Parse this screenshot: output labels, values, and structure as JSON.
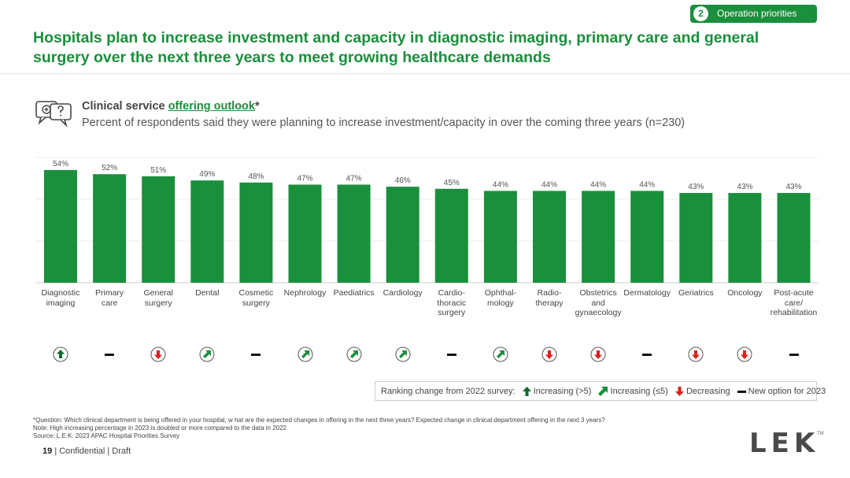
{
  "badge": {
    "number": "2",
    "label": "Operation priorities"
  },
  "title": "Hospitals plan to increase investment and capacity in diagnostic imaging, primary care and general surgery over the next three years to meet growing healthcare demands",
  "subtitle": {
    "prefix": "Clinical service ",
    "link": "offering outlook",
    "suffix": "*",
    "description": "Percent of respondents said they were planning to increase investment/capacity in over the coming three years (n=230)"
  },
  "chart_data": {
    "type": "bar",
    "categories": [
      "Diagnostic imaging",
      "Primary care",
      "General surgery",
      "Dental",
      "Cosmetic surgery",
      "Nephrology",
      "Paediatrics",
      "Cardiology",
      "Cardio-thoracic surgery",
      "Ophthal-mology",
      "Radio-therapy",
      "Obstetrics and gynaecology",
      "Dermatology",
      "Geriatrics",
      "Oncology",
      "Post-acute care/ rehabilitation"
    ],
    "category_lines": [
      [
        "Diagnostic",
        "imaging"
      ],
      [
        "Primary",
        "care"
      ],
      [
        "General",
        "surgery"
      ],
      [
        "Dental"
      ],
      [
        "Cosmetic",
        "surgery"
      ],
      [
        "Nephrology"
      ],
      [
        "Paediatrics"
      ],
      [
        "Cardiology"
      ],
      [
        "Cardio-",
        "thoracic",
        "surgery"
      ],
      [
        "Ophthal-",
        "mology"
      ],
      [
        "Radio-",
        "therapy"
      ],
      [
        "Obstetrics",
        "and",
        "gynaecology"
      ],
      [
        "Dermatology"
      ],
      [
        "Geriatrics"
      ],
      [
        "Oncology"
      ],
      [
        "Post-acute",
        "care/",
        "rehabilitation"
      ]
    ],
    "values": [
      54,
      52,
      51,
      49,
      48,
      47,
      47,
      46,
      45,
      44,
      44,
      44,
      44,
      43,
      43,
      43
    ],
    "value_labels": [
      "54%",
      "52%",
      "51%",
      "49%",
      "48%",
      "47%",
      "47%",
      "46%",
      "45%",
      "44%",
      "44%",
      "44%",
      "44%",
      "43%",
      "43%",
      "43%"
    ],
    "ranking_change": [
      "increasing_gt5",
      "new",
      "decreasing",
      "increasing_le5",
      "new",
      "increasing_le5",
      "increasing_le5",
      "increasing_le5",
      "new",
      "increasing_le5",
      "decreasing",
      "decreasing",
      "new",
      "decreasing",
      "decreasing",
      "new"
    ],
    "ylim": [
      0,
      60
    ],
    "grid": true,
    "bar_color": "#1a8f3c"
  },
  "legend": {
    "prefix": "Ranking change from 2022 survey:",
    "increasing_gt5": "Increasing (>5)",
    "increasing_le5": "Increasing (≤5)",
    "decreasing": "Decreasing",
    "new": "New option for 2023"
  },
  "colors": {
    "accent": "#1a8f3c",
    "decreasing": "#e0201b",
    "increasing_strong": "#0f6b2e"
  },
  "footnotes": {
    "question": "*Question: Which clinical department is being offered in your hospital, w hat are the expected changes in offering in the next three years? Expected change in clinical department offering in the next 3 years?",
    "note": "Note: High increasing percentage in 2023 is doubled or more compared to the data in 2022",
    "source": "Source: L.E.K. 2023 APAC Hospital Priorities Survey"
  },
  "footer": {
    "page": "19",
    "text": "| Confidential | Draft"
  },
  "logo": {
    "text": "LEK",
    "tm": "TM"
  }
}
